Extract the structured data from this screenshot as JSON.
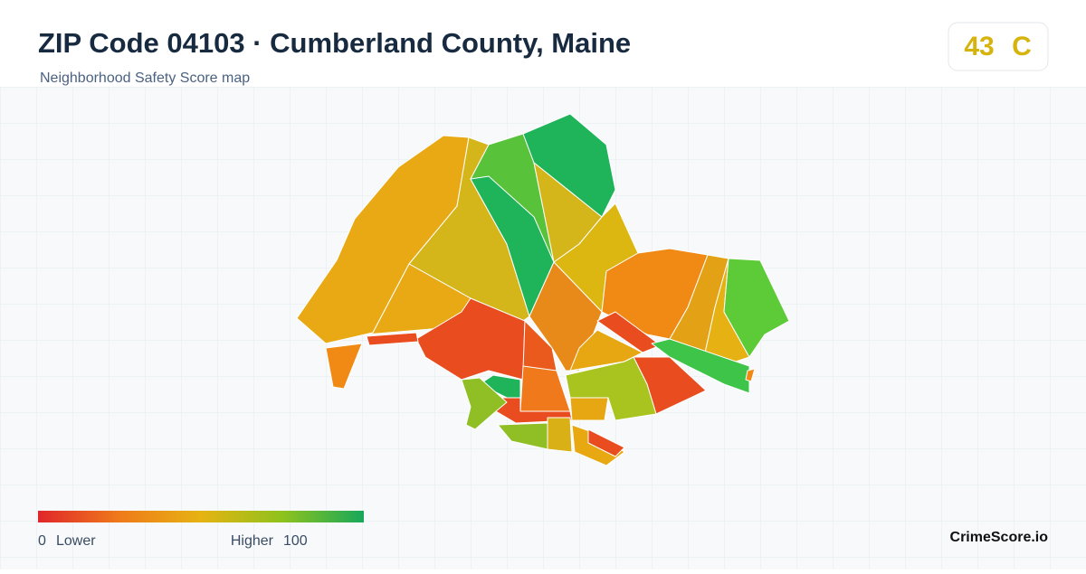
{
  "header": {
    "title": "ZIP Code 04103 · Cumberland County, Maine",
    "subtitle": "Neighborhood Safety Score map"
  },
  "score": {
    "value": "43",
    "grade": "C"
  },
  "legend": {
    "min": "0",
    "min_label": "Lower",
    "max_label": "Higher",
    "max": "100"
  },
  "brand": "CrimeScore.io"
}
